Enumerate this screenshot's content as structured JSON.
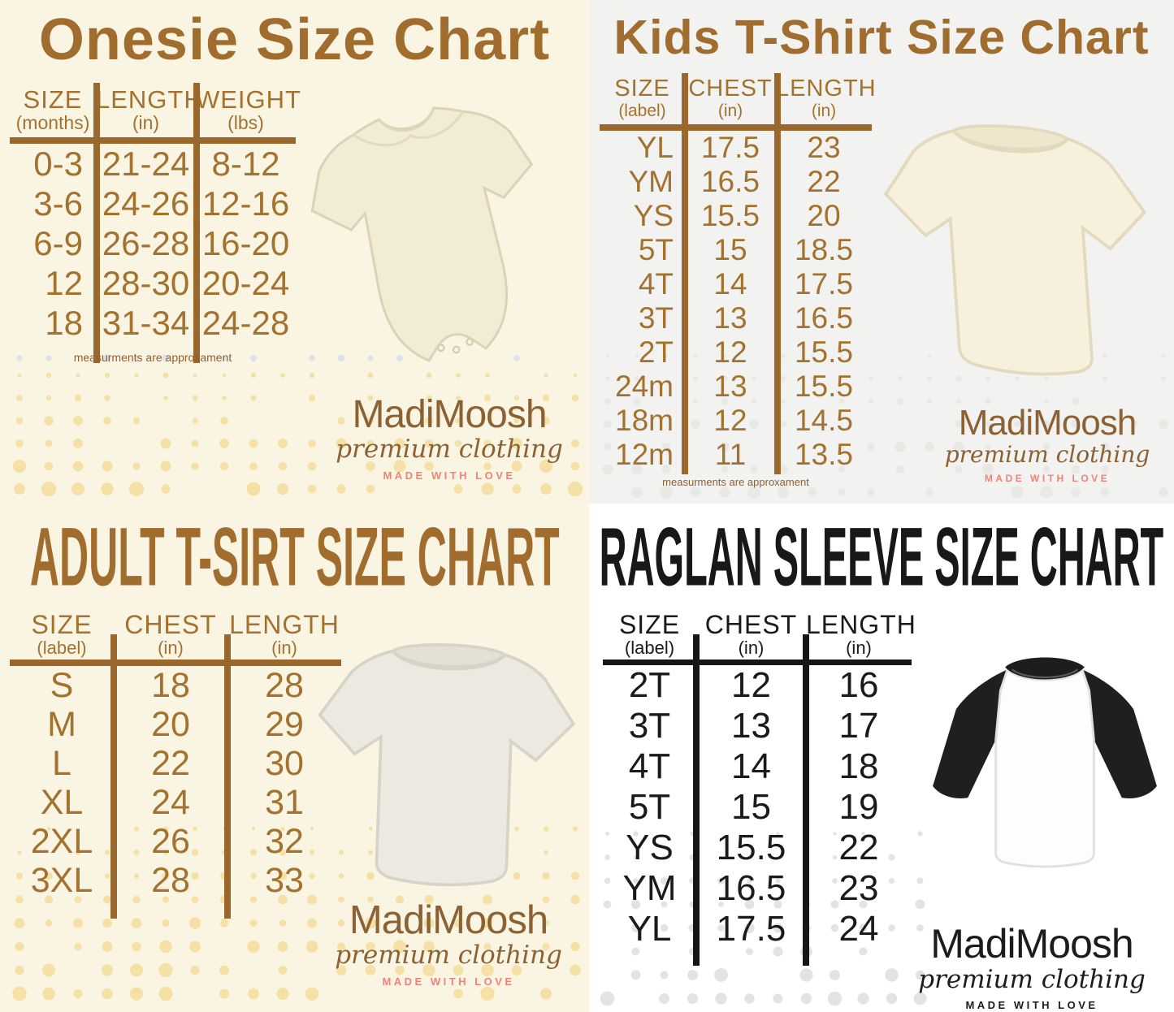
{
  "colors": {
    "brown_ink": "#9F6C2F",
    "title_brown": "#A06D2E",
    "logo_brown": "#8C6134",
    "motto_pink": "#F08378",
    "black_ink": "#1A1A1A",
    "cream_background": "#FAF5E2",
    "gray_background": "#F2F2F0",
    "white_background": "#FFFFFF",
    "dot_yellow": "#F5E0A6",
    "dot_gray": "#E7E7E4"
  },
  "chart_data": [
    {
      "type": "table",
      "panel": "top-left",
      "title": "Onesie Size Chart",
      "columns": [
        {
          "main": "SIZE",
          "sub": "(months)"
        },
        {
          "main": "LENGTH",
          "sub": "(in)"
        },
        {
          "main": "WEIGHT",
          "sub": "(lbs)"
        }
      ],
      "rows": [
        [
          "0-3",
          "21-24",
          "8-12"
        ],
        [
          "3-6",
          "24-26",
          "12-16"
        ],
        [
          "6-9",
          "26-28",
          "16-20"
        ],
        [
          "12",
          "28-30",
          "20-24"
        ],
        [
          "18",
          "31-34",
          "24-28"
        ]
      ],
      "note": "measurments are approxament",
      "brand": {
        "name": "MadiMoosh",
        "tagline": "premium clothing",
        "motto": "MADE WITH LOVE"
      },
      "image": "onesie-product-photo"
    },
    {
      "type": "table",
      "panel": "top-right",
      "title": "Kids T-Shirt Size Chart",
      "columns": [
        {
          "main": "SIZE",
          "sub": "(label)"
        },
        {
          "main": "CHEST",
          "sub": "(in)"
        },
        {
          "main": "LENGTH",
          "sub": "(in)"
        }
      ],
      "rows": [
        [
          "YL",
          "17.5",
          "23"
        ],
        [
          "YM",
          "16.5",
          "22"
        ],
        [
          "YS",
          "15.5",
          "20"
        ],
        [
          "5T",
          "15",
          "18.5"
        ],
        [
          "4T",
          "14",
          "17.5"
        ],
        [
          "3T",
          "13",
          "16.5"
        ],
        [
          "2T",
          "12",
          "15.5"
        ],
        [
          "24m",
          "13",
          "15.5"
        ],
        [
          "18m",
          "12",
          "14.5"
        ],
        [
          "12m",
          "11",
          "13.5"
        ]
      ],
      "note": "measurments are approxament",
      "brand": {
        "name": "MadiMoosh",
        "tagline": "premium clothing",
        "motto": "MADE WITH LOVE"
      },
      "image": "kids-tshirt-product-photo"
    },
    {
      "type": "table",
      "panel": "bottom-left",
      "title": "ADULT T-SIRT SIZE CHART",
      "columns": [
        {
          "main": "SIZE",
          "sub": "(label)"
        },
        {
          "main": "CHEST",
          "sub": "(in)"
        },
        {
          "main": "LENGTH",
          "sub": "(in)"
        }
      ],
      "rows": [
        [
          "S",
          "18",
          "28"
        ],
        [
          "M",
          "20",
          "29"
        ],
        [
          "L",
          "22",
          "30"
        ],
        [
          "XL",
          "24",
          "31"
        ],
        [
          "2XL",
          "26",
          "32"
        ],
        [
          "3XL",
          "28",
          "33"
        ]
      ],
      "brand": {
        "name": "MadiMoosh",
        "tagline": "premium clothing",
        "motto": "MADE WITH LOVE"
      },
      "image": "adult-tshirt-product-photo"
    },
    {
      "type": "table",
      "panel": "bottom-right",
      "title": "RAGLAN SLEEVE SIZE CHART",
      "columns": [
        {
          "main": "SIZE",
          "sub": "(label)"
        },
        {
          "main": "CHEST",
          "sub": "(in)"
        },
        {
          "main": "LENGTH",
          "sub": "(in)"
        }
      ],
      "rows": [
        [
          "2T",
          "12",
          "16"
        ],
        [
          "3T",
          "13",
          "17"
        ],
        [
          "4T",
          "14",
          "18"
        ],
        [
          "5T",
          "15",
          "19"
        ],
        [
          "YS",
          "15.5",
          "22"
        ],
        [
          "YM",
          "16.5",
          "23"
        ],
        [
          "YL",
          "17.5",
          "24"
        ]
      ],
      "brand": {
        "name": "MadiMoosh",
        "tagline": "premium clothing",
        "motto": "MADE WITH LOVE"
      },
      "image": "raglan-shirt-product-photo"
    }
  ]
}
